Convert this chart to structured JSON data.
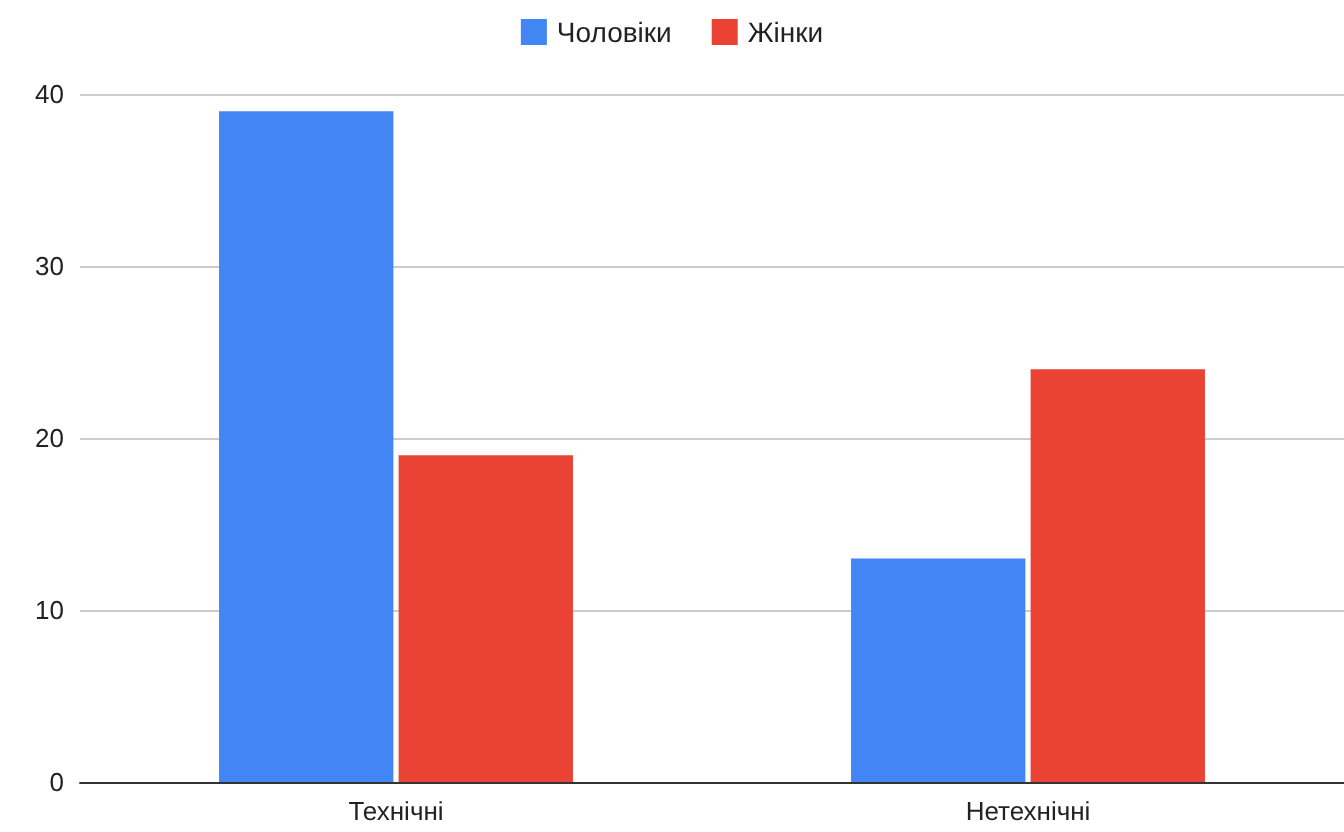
{
  "chart_data": {
    "type": "bar",
    "categories": [
      "Технічні",
      "Нетехнічні"
    ],
    "series": [
      {
        "name": "Чоловіки",
        "color": "#4285f4",
        "values": [
          39,
          13
        ]
      },
      {
        "name": "Жінки",
        "color": "#ea4335",
        "values": [
          19,
          24
        ]
      }
    ],
    "ylim": [
      0,
      40
    ],
    "yticks": [
      0,
      10,
      20,
      30,
      40
    ],
    "grid": "y",
    "legend": "top"
  }
}
